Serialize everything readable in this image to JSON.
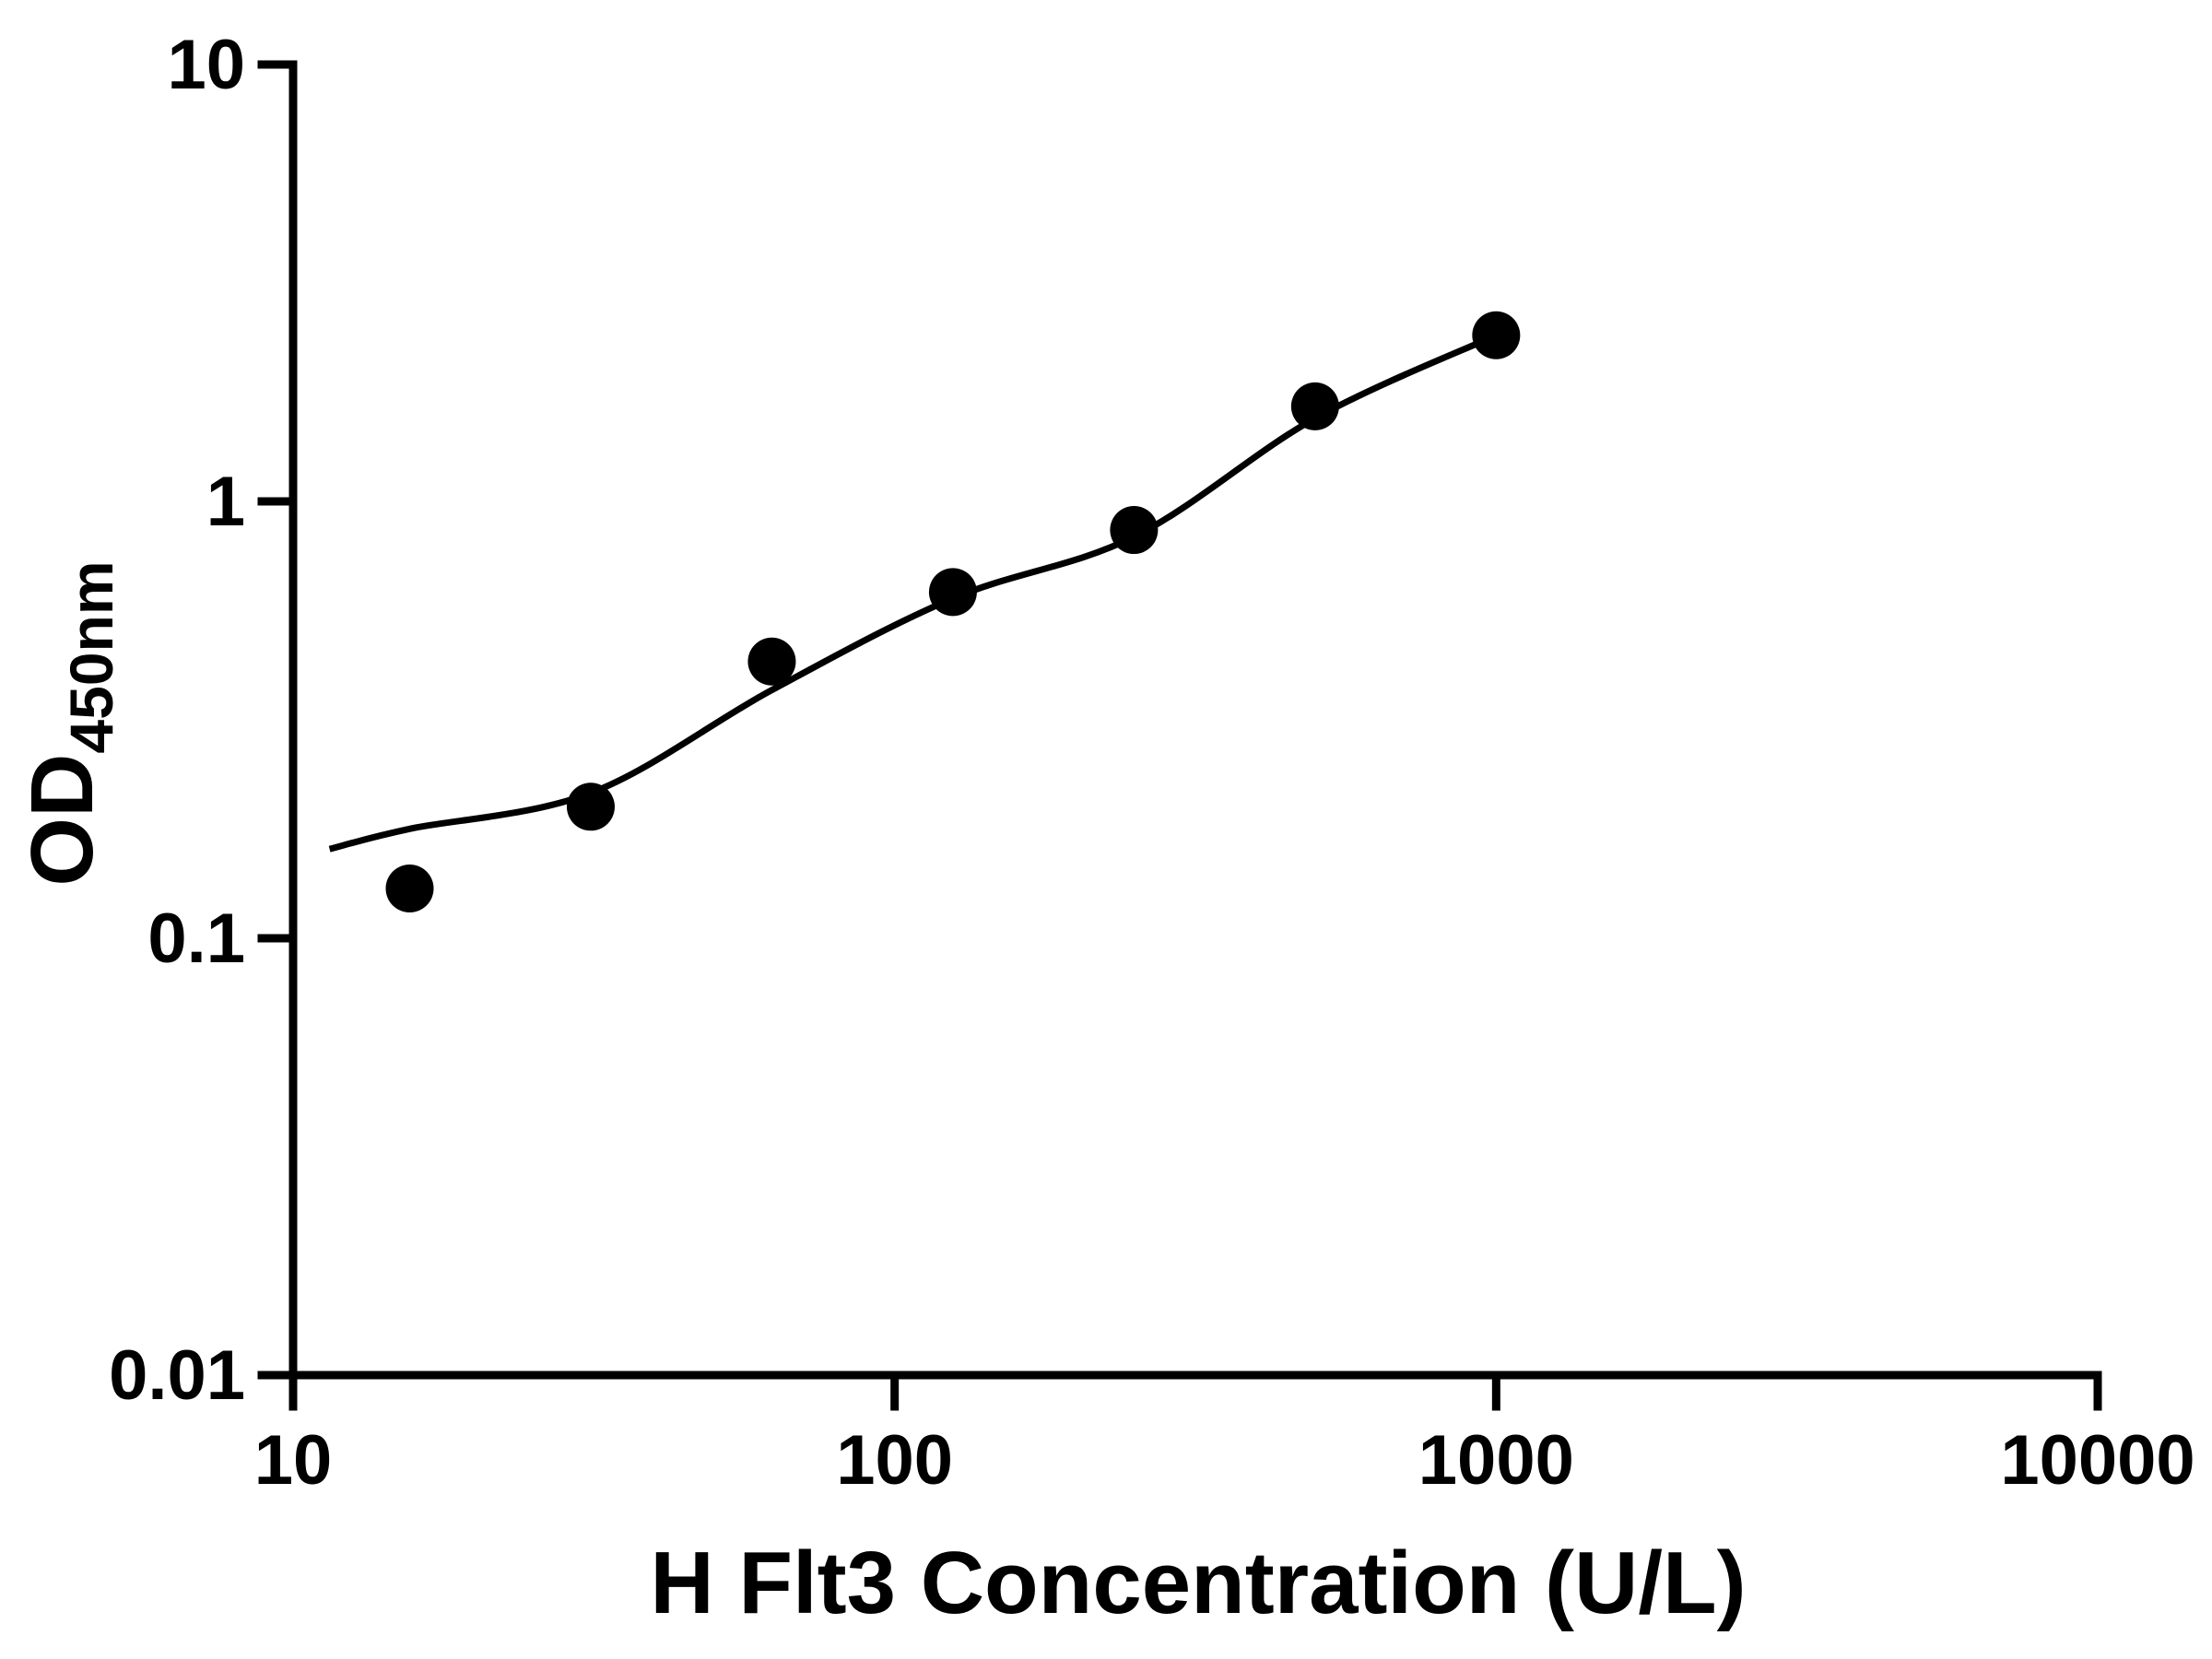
{
  "style": {
    "background": "#ffffff",
    "axis_color": "#000000",
    "curve_color": "#000000",
    "marker_color": "#000000"
  },
  "chart_data": {
    "type": "scatter",
    "title": "",
    "xlabel": "H Flt3 Concentration (U/L)",
    "ylabel_main": "OD",
    "ylabel_sub": "450nm",
    "x_scale": "log",
    "y_scale": "log",
    "xlim": [
      10,
      10000
    ],
    "ylim": [
      0.01,
      10
    ],
    "grid": false,
    "legend": false,
    "x_ticks": [
      {
        "value": 10,
        "label": "10"
      },
      {
        "value": 100,
        "label": "100"
      },
      {
        "value": 1000,
        "label": "1000"
      },
      {
        "value": 10000,
        "label": "10000"
      }
    ],
    "y_ticks": [
      {
        "value": 0.01,
        "label": "0.01"
      },
      {
        "value": 0.1,
        "label": "0.1"
      },
      {
        "value": 1,
        "label": "1"
      },
      {
        "value": 10,
        "label": "10"
      }
    ],
    "series": [
      {
        "marker": "filled-circle",
        "color": "#000000",
        "points": [
          {
            "x": 15.625,
            "y": 0.13
          },
          {
            "x": 31.25,
            "y": 0.2
          },
          {
            "x": 62.5,
            "y": 0.43
          },
          {
            "x": 125,
            "y": 0.62
          },
          {
            "x": 250,
            "y": 0.86
          },
          {
            "x": 500,
            "y": 1.65
          },
          {
            "x": 1000,
            "y": 2.4
          }
        ]
      }
    ],
    "fit_curve": [
      {
        "x": 11.5,
        "y": 0.16
      },
      {
        "x": 15.625,
        "y": 0.178
      },
      {
        "x": 31.25,
        "y": 0.215
      },
      {
        "x": 62.5,
        "y": 0.37
      },
      {
        "x": 125,
        "y": 0.6
      },
      {
        "x": 250,
        "y": 0.83
      },
      {
        "x": 500,
        "y": 1.55
      },
      {
        "x": 1000,
        "y": 2.4
      }
    ]
  }
}
